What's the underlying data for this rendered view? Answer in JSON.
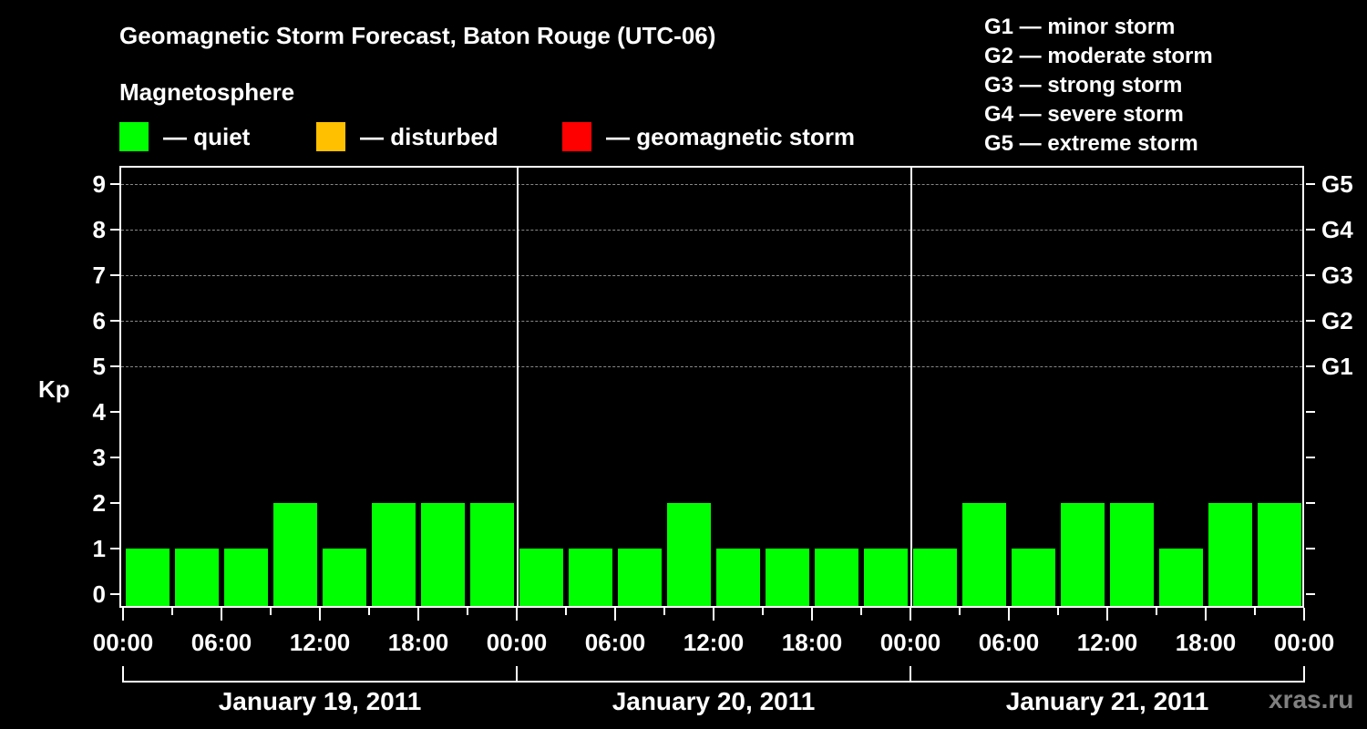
{
  "title": "Geomagnetic Storm Forecast, Baton Rouge (UTC-06)",
  "subtitle": "Magnetosphere",
  "legend": [
    {
      "label": "— quiet",
      "color": "#00ff00"
    },
    {
      "label": "— disturbed",
      "color": "#ffc000"
    },
    {
      "label": "— geomagnetic storm",
      "color": "#ff0000"
    }
  ],
  "g_scale": [
    "G1 — minor storm",
    "G2 — moderate storm",
    "G3 — strong storm",
    "G4 — severe storm",
    "G5 — extreme storm"
  ],
  "watermark": "xras.ru",
  "chart_data": {
    "type": "bar",
    "title": "Geomagnetic Storm Forecast, Baton Rouge (UTC-06)",
    "ylabel": "Kp",
    "xlabel": "",
    "ylim": [
      0,
      9
    ],
    "yticks": [
      0,
      1,
      2,
      3,
      4,
      5,
      6,
      7,
      8,
      9
    ],
    "right_axis_labels": {
      "5": "G1",
      "6": "G2",
      "7": "G3",
      "8": "G4",
      "9": "G5"
    },
    "grid": "dashed horizontal lines at Kp 5-9",
    "xtick_labels": [
      "00:00",
      "06:00",
      "12:00",
      "18:00",
      "00:00",
      "06:00",
      "12:00",
      "18:00",
      "00:00",
      "06:00",
      "12:00",
      "18:00",
      "00:00"
    ],
    "days": [
      "January 19, 2011",
      "January 20, 2011",
      "January 21, 2011"
    ],
    "interval_hours": 3,
    "categories": [
      "Jan 19 00:00",
      "Jan 19 03:00",
      "Jan 19 06:00",
      "Jan 19 09:00",
      "Jan 19 12:00",
      "Jan 19 15:00",
      "Jan 19 18:00",
      "Jan 19 21:00",
      "Jan 20 00:00",
      "Jan 20 03:00",
      "Jan 20 06:00",
      "Jan 20 09:00",
      "Jan 20 12:00",
      "Jan 20 15:00",
      "Jan 20 18:00",
      "Jan 20 21:00",
      "Jan 21 00:00",
      "Jan 21 03:00",
      "Jan 21 06:00",
      "Jan 21 09:00",
      "Jan 21 12:00",
      "Jan 21 15:00",
      "Jan 21 18:00",
      "Jan 21 21:00"
    ],
    "values": [
      1,
      1,
      1,
      2,
      1,
      2,
      2,
      2,
      1,
      1,
      1,
      2,
      1,
      1,
      1,
      1,
      1,
      2,
      1,
      2,
      2,
      1,
      2,
      2
    ],
    "bar_color": "#00ff00",
    "legend": [
      "quiet",
      "disturbed",
      "geomagnetic storm"
    ]
  }
}
